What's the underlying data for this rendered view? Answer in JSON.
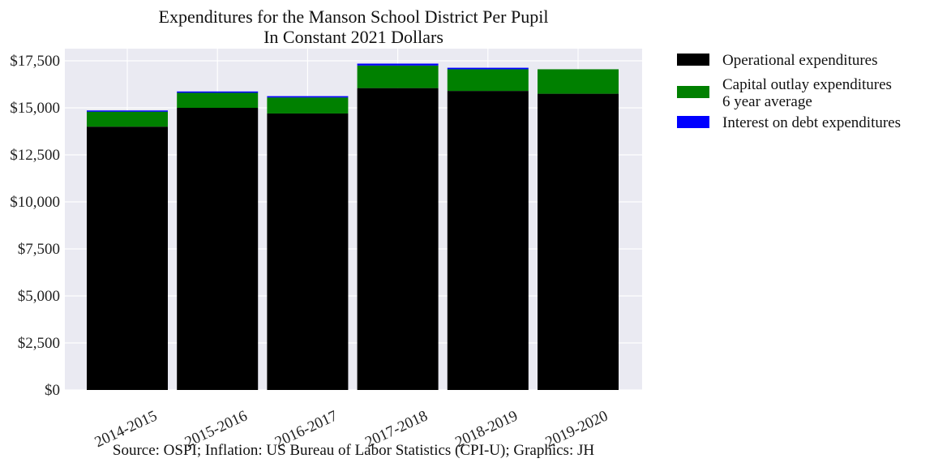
{
  "chart_data": {
    "type": "bar",
    "stacked": true,
    "title": [
      "Expenditures for the Manson School District Per Pupil",
      "In Constant 2021 Dollars"
    ],
    "source": "Source: OSPI; Inflation: US Bureau of Labor Statistics (CPI-U); Graphics: JH",
    "categories": [
      "2014-2015",
      "2015-2016",
      "2016-2017",
      "2017-2018",
      "2018-2019",
      "2019-2020"
    ],
    "series": [
      {
        "name": "Operational expenditures",
        "color": "#000000",
        "values": [
          14000,
          15000,
          14700,
          16050,
          15900,
          15750
        ]
      },
      {
        "name": "Capital outlay expenditures\n6 year average",
        "color": "#008000",
        "values": [
          800,
          800,
          850,
          1200,
          1150,
          1300
        ]
      },
      {
        "name": "Interest on debt expenditures",
        "color": "#0000ff",
        "values": [
          60,
          70,
          70,
          100,
          80,
          0
        ]
      }
    ],
    "ylim": [
      0,
      17500
    ],
    "yticks": [
      0,
      2500,
      5000,
      7500,
      10000,
      12500,
      15000,
      17500
    ],
    "ytick_labels": [
      "$0",
      "$2,500",
      "$5,000",
      "$7,500",
      "$10,000",
      "$12,500",
      "$15,000",
      "$17,500"
    ],
    "xlabel": "",
    "ylabel": "",
    "grid": true,
    "legend_position": "outside-right-top"
  }
}
